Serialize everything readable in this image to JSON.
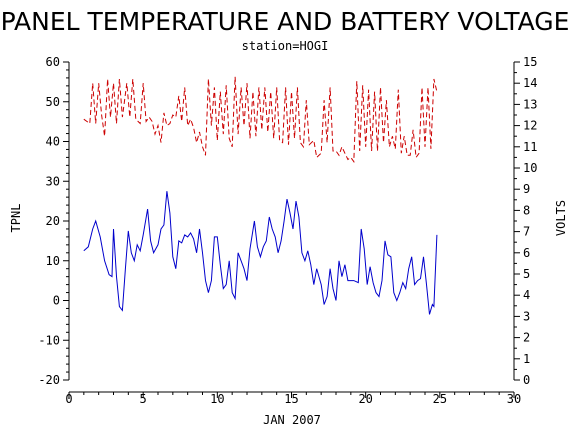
{
  "chart_data": {
    "type": "line",
    "title": "PANEL TEMPERATURE AND BATTERY VOLTAGE",
    "subtitle": "station=HOGI",
    "xlabel": "JAN 2007",
    "ylabel_left": "TPNL",
    "ylabel_right": "VOLTS",
    "xlim": [
      0,
      30
    ],
    "ylim_left": [
      -20,
      60
    ],
    "ylim_right": [
      0,
      15
    ],
    "x_ticks": [
      0,
      5,
      10,
      15,
      20,
      25,
      30
    ],
    "y_ticks_left": [
      -20,
      -10,
      0,
      10,
      20,
      30,
      40,
      50,
      60
    ],
    "y_ticks_right": [
      0,
      1,
      2,
      3,
      4,
      5,
      6,
      7,
      8,
      9,
      10,
      11,
      12,
      13,
      14,
      15
    ],
    "grid": false,
    "series": [
      {
        "name": "TPNL",
        "axis": "left",
        "style": "solid",
        "color": "#0000cc",
        "points": [
          [
            1.0,
            12.5
          ],
          [
            1.3,
            13.5
          ],
          [
            1.6,
            18.0
          ],
          [
            1.8,
            20.0
          ],
          [
            2.1,
            16.0
          ],
          [
            2.4,
            10.0
          ],
          [
            2.7,
            6.5
          ],
          [
            2.9,
            6.0
          ],
          [
            3.0,
            18.0
          ],
          [
            3.2,
            6.0
          ],
          [
            3.4,
            -1.5
          ],
          [
            3.6,
            -2.5
          ],
          [
            3.8,
            8.0
          ],
          [
            4.0,
            17.5
          ],
          [
            4.2,
            12.0
          ],
          [
            4.4,
            10.0
          ],
          [
            4.6,
            14.0
          ],
          [
            4.8,
            12.5
          ],
          [
            5.0,
            16.5
          ],
          [
            5.3,
            23.0
          ],
          [
            5.5,
            15.0
          ],
          [
            5.7,
            12.0
          ],
          [
            6.0,
            14.0
          ],
          [
            6.2,
            18.0
          ],
          [
            6.4,
            19.0
          ],
          [
            6.6,
            27.5
          ],
          [
            6.8,
            22.0
          ],
          [
            7.0,
            11.0
          ],
          [
            7.2,
            8.0
          ],
          [
            7.4,
            15.0
          ],
          [
            7.6,
            14.5
          ],
          [
            7.8,
            16.5
          ],
          [
            8.0,
            16.0
          ],
          [
            8.2,
            17.0
          ],
          [
            8.4,
            15.5
          ],
          [
            8.6,
            12.0
          ],
          [
            8.8,
            18.0
          ],
          [
            9.0,
            12.0
          ],
          [
            9.2,
            5.0
          ],
          [
            9.4,
            2.0
          ],
          [
            9.6,
            5.0
          ],
          [
            9.8,
            16.0
          ],
          [
            10.0,
            16.0
          ],
          [
            10.2,
            9.0
          ],
          [
            10.4,
            3.0
          ],
          [
            10.6,
            4.0
          ],
          [
            10.8,
            10.0
          ],
          [
            11.0,
            2.0
          ],
          [
            11.2,
            0.5
          ],
          [
            11.4,
            12.0
          ],
          [
            11.6,
            10.0
          ],
          [
            11.8,
            8.0
          ],
          [
            12.0,
            5.0
          ],
          [
            12.2,
            13.0
          ],
          [
            12.5,
            20.0
          ],
          [
            12.7,
            13.5
          ],
          [
            12.9,
            11.0
          ],
          [
            13.1,
            13.5
          ],
          [
            13.3,
            15.0
          ],
          [
            13.5,
            21.0
          ],
          [
            13.7,
            18.0
          ],
          [
            13.9,
            16.0
          ],
          [
            14.1,
            12.0
          ],
          [
            14.3,
            15.0
          ],
          [
            14.5,
            20.0
          ],
          [
            14.7,
            25.5
          ],
          [
            14.9,
            22.0
          ],
          [
            15.1,
            18.0
          ],
          [
            15.3,
            25.0
          ],
          [
            15.5,
            21.0
          ],
          [
            15.7,
            12.0
          ],
          [
            15.9,
            10.0
          ],
          [
            16.1,
            12.5
          ],
          [
            16.3,
            9.0
          ],
          [
            16.5,
            4.0
          ],
          [
            16.7,
            8.0
          ],
          [
            17.0,
            4.0
          ],
          [
            17.2,
            -1.0
          ],
          [
            17.4,
            1.0
          ],
          [
            17.6,
            8.0
          ],
          [
            17.8,
            3.0
          ],
          [
            18.0,
            0.0
          ],
          [
            18.2,
            10.0
          ],
          [
            18.4,
            6.0
          ],
          [
            18.6,
            9.0
          ],
          [
            18.8,
            5.0
          ],
          [
            19.0,
            5.0
          ],
          [
            19.2,
            5.0
          ],
          [
            19.5,
            4.5
          ],
          [
            19.7,
            18.0
          ],
          [
            19.9,
            13.0
          ],
          [
            20.1,
            4.0
          ],
          [
            20.3,
            8.5
          ],
          [
            20.5,
            4.5
          ],
          [
            20.7,
            2.0
          ],
          [
            20.9,
            1.0
          ],
          [
            21.1,
            5.0
          ],
          [
            21.3,
            15.0
          ],
          [
            21.5,
            11.5
          ],
          [
            21.7,
            11.0
          ],
          [
            21.9,
            2.0
          ],
          [
            22.1,
            0.0
          ],
          [
            22.3,
            2.0
          ],
          [
            22.5,
            4.5
          ],
          [
            22.7,
            3.0
          ],
          [
            22.9,
            8.0
          ],
          [
            23.1,
            11.0
          ],
          [
            23.3,
            4.0
          ],
          [
            23.5,
            5.0
          ],
          [
            23.7,
            5.5
          ],
          [
            23.9,
            11.0
          ],
          [
            24.1,
            4.0
          ],
          [
            24.3,
            -3.5
          ],
          [
            24.5,
            -1.0
          ],
          [
            24.6,
            -1.5
          ],
          [
            24.8,
            16.5
          ]
        ]
      },
      {
        "name": "VOLTS",
        "axis": "right",
        "style": "dashed",
        "color": "#cc0000",
        "points": [
          [
            1.0,
            12.3
          ],
          [
            1.4,
            12.1
          ],
          [
            1.6,
            14.0
          ],
          [
            1.8,
            12.1
          ],
          [
            2.0,
            14.0
          ],
          [
            2.2,
            12.5
          ],
          [
            2.4,
            11.5
          ],
          [
            2.6,
            14.2
          ],
          [
            2.8,
            12.4
          ],
          [
            3.0,
            14.0
          ],
          [
            3.2,
            12.1
          ],
          [
            3.4,
            14.2
          ],
          [
            3.6,
            12.4
          ],
          [
            3.9,
            14.0
          ],
          [
            4.1,
            12.4
          ],
          [
            4.3,
            14.2
          ],
          [
            4.5,
            12.3
          ],
          [
            4.8,
            12.1
          ],
          [
            5.0,
            14.0
          ],
          [
            5.2,
            12.2
          ],
          [
            5.4,
            12.4
          ],
          [
            5.6,
            12.2
          ],
          [
            5.8,
            11.6
          ],
          [
            6.0,
            12.0
          ],
          [
            6.2,
            11.2
          ],
          [
            6.4,
            12.6
          ],
          [
            6.6,
            12.0
          ],
          [
            6.8,
            12.1
          ],
          [
            7.0,
            12.5
          ],
          [
            7.2,
            12.4
          ],
          [
            7.4,
            13.4
          ],
          [
            7.6,
            12.2
          ],
          [
            7.8,
            13.8
          ],
          [
            8.0,
            12.0
          ],
          [
            8.2,
            12.3
          ],
          [
            8.4,
            11.9
          ],
          [
            8.6,
            11.2
          ],
          [
            8.8,
            11.7
          ],
          [
            9.0,
            11.0
          ],
          [
            9.2,
            10.6
          ],
          [
            9.4,
            14.2
          ],
          [
            9.6,
            12.0
          ],
          [
            9.8,
            13.8
          ],
          [
            10.0,
            11.3
          ],
          [
            10.2,
            13.6
          ],
          [
            10.4,
            11.6
          ],
          [
            10.6,
            13.9
          ],
          [
            10.8,
            11.4
          ],
          [
            11.0,
            11.0
          ],
          [
            11.2,
            14.3
          ],
          [
            11.4,
            11.6
          ],
          [
            11.6,
            13.8
          ],
          [
            11.8,
            12.0
          ],
          [
            12.0,
            14.0
          ],
          [
            12.2,
            11.4
          ],
          [
            12.4,
            13.6
          ],
          [
            12.6,
            11.5
          ],
          [
            12.8,
            13.8
          ],
          [
            13.0,
            11.8
          ],
          [
            13.2,
            13.8
          ],
          [
            13.4,
            11.7
          ],
          [
            13.6,
            13.6
          ],
          [
            13.8,
            11.4
          ],
          [
            14.0,
            13.8
          ],
          [
            14.2,
            11.3
          ],
          [
            14.4,
            11.2
          ],
          [
            14.6,
            13.8
          ],
          [
            14.8,
            11.1
          ],
          [
            15.0,
            13.6
          ],
          [
            15.2,
            11.4
          ],
          [
            15.4,
            13.8
          ],
          [
            15.6,
            11.2
          ],
          [
            15.8,
            11.0
          ],
          [
            16.0,
            13.2
          ],
          [
            16.2,
            11.1
          ],
          [
            16.5,
            11.3
          ],
          [
            16.7,
            10.5
          ],
          [
            17.0,
            10.7
          ],
          [
            17.2,
            13.2
          ],
          [
            17.4,
            11.2
          ],
          [
            17.6,
            13.8
          ],
          [
            17.8,
            10.8
          ],
          [
            18.0,
            10.8
          ],
          [
            18.2,
            10.6
          ],
          [
            18.4,
            11.0
          ],
          [
            18.6,
            10.7
          ],
          [
            18.8,
            10.4
          ],
          [
            19.0,
            10.5
          ],
          [
            19.2,
            10.3
          ],
          [
            19.4,
            14.1
          ],
          [
            19.6,
            10.8
          ],
          [
            19.8,
            13.9
          ],
          [
            20.0,
            11.0
          ],
          [
            20.2,
            13.7
          ],
          [
            20.4,
            10.8
          ],
          [
            20.6,
            13.6
          ],
          [
            20.8,
            10.8
          ],
          [
            21.0,
            13.8
          ],
          [
            21.2,
            11.2
          ],
          [
            21.4,
            13.2
          ],
          [
            21.6,
            11.0
          ],
          [
            21.8,
            11.5
          ],
          [
            22.0,
            10.9
          ],
          [
            22.2,
            13.7
          ],
          [
            22.4,
            10.7
          ],
          [
            22.6,
            11.5
          ],
          [
            22.8,
            10.6
          ],
          [
            23.0,
            10.6
          ],
          [
            23.2,
            11.8
          ],
          [
            23.4,
            10.5
          ],
          [
            23.6,
            10.7
          ],
          [
            23.8,
            13.8
          ],
          [
            24.0,
            11.0
          ],
          [
            24.2,
            13.8
          ],
          [
            24.4,
            10.9
          ],
          [
            24.6,
            14.2
          ],
          [
            24.8,
            13.6
          ]
        ]
      }
    ]
  }
}
